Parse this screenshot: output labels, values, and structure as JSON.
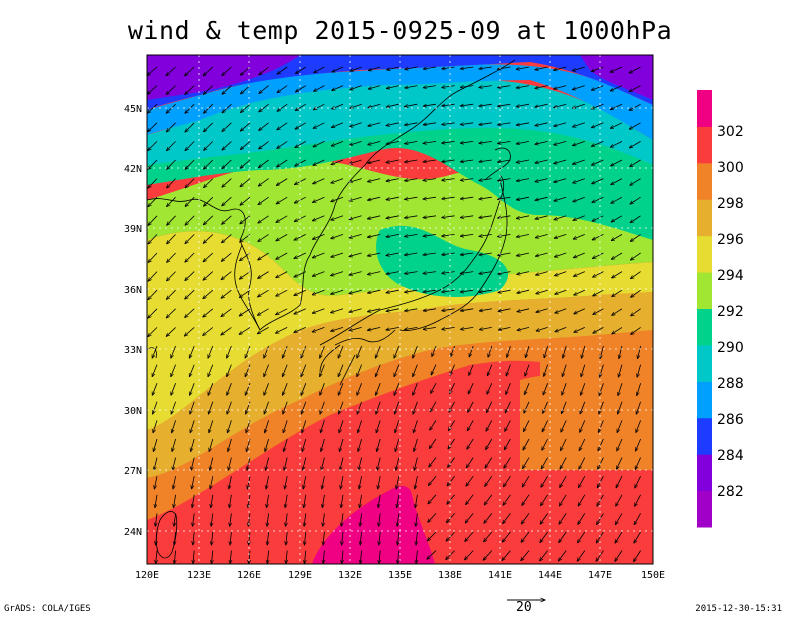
{
  "title": "wind & temp 2015-0925-09 at 1000hPa",
  "credit": "GrADS: COLA/IGES",
  "timestamp": "2015-12-30-15:31",
  "vector_reference": {
    "label": "20"
  },
  "axes": {
    "x_ticks": [
      "120E",
      "123E",
      "126E",
      "129E",
      "132E",
      "135E",
      "138E",
      "141E",
      "144E",
      "147E",
      "150E"
    ],
    "y_ticks": [
      "24N",
      "27N",
      "30N",
      "33N",
      "36N",
      "39N",
      "42N",
      "45N"
    ],
    "lon_range": [
      120,
      150
    ],
    "lat_range": [
      22.5,
      48
    ]
  },
  "colorbar": {
    "labels": [
      "282",
      "284",
      "286",
      "288",
      "290",
      "292",
      "294",
      "296",
      "298",
      "300",
      "302"
    ],
    "colors": [
      "#a000c8",
      "#8200dc",
      "#1e3cff",
      "#00a0ff",
      "#00c8c8",
      "#00d28c",
      "#a0e632",
      "#e6dc32",
      "#e6af2d",
      "#f08228",
      "#fa3c3c",
      "#f00082"
    ]
  }
}
